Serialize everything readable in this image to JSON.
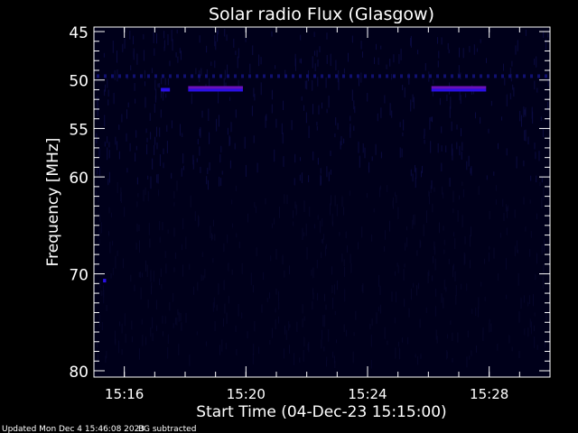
{
  "chart_data": {
    "type": "heatmap",
    "title": "Solar radio Flux (Glasgow)",
    "xlabel": "Start Time (04-Dec-23 15:15:00)",
    "ylabel": "Frequency [MHz]",
    "xlim": [
      "15:15",
      "15:30"
    ],
    "ylim": [
      80,
      45
    ],
    "x_ticks": [
      "15:16",
      "15:20",
      "15:24",
      "15:28"
    ],
    "y_ticks": [
      45,
      50,
      55,
      60,
      70,
      80
    ],
    "colors": {
      "background": "#00001a",
      "bar_top": "#6a10b8",
      "bar_bottom": "#2a10e8",
      "line": "#101070"
    },
    "features": [
      {
        "freq_mhz": 51,
        "start": "15:18.1",
        "end": "15:19.9",
        "kind": "band"
      },
      {
        "freq_mhz": 51,
        "start": "15:26.1",
        "end": "15:27.9",
        "kind": "band"
      },
      {
        "freq_mhz": 51,
        "start": "15:17.2",
        "end": "15:17.5",
        "kind": "blip"
      },
      {
        "freq_mhz": 70.7,
        "start": "15:15.3",
        "end": "15:15.4",
        "kind": "blip"
      },
      {
        "freq_mhz": 49.6,
        "start": "15:15",
        "end": "15:30",
        "kind": "dashed"
      }
    ]
  },
  "footer": {
    "updated": "Updated Mon Dec  4 15:46:08 2023",
    "note": "BG subtracted"
  }
}
